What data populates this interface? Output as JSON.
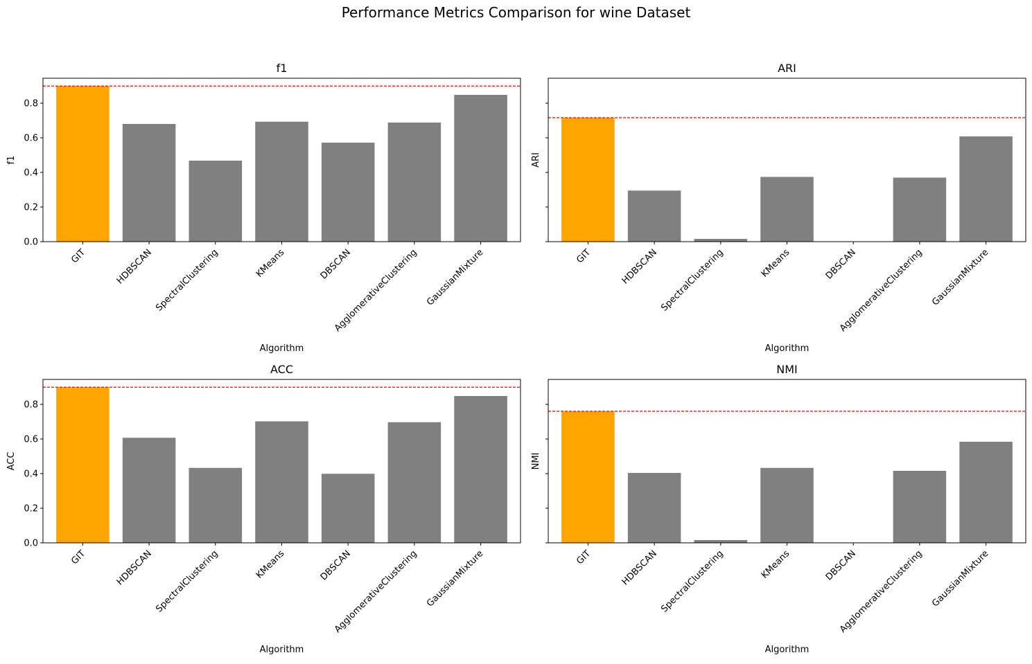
{
  "suptitle": "Performance Metrics Comparison for wine Dataset",
  "colors": {
    "highlight": "#ffa500",
    "bar": "#808080",
    "reference_line": "#ff0000"
  },
  "chart_data": [
    {
      "type": "bar",
      "title": "f1",
      "xlabel": "Algorithm",
      "ylabel": "f1",
      "categories": [
        "GIT",
        "HDBSCAN",
        "SpectralClustering",
        "KMeans",
        "DBSCAN",
        "AgglomerativeClustering",
        "GaussianMixture"
      ],
      "values": [
        0.899,
        0.68,
        0.468,
        0.693,
        0.572,
        0.688,
        0.848
      ],
      "highlight_index": 0,
      "reference_line": 0.899,
      "ylim": [
        0,
        0.944
      ],
      "yticks": [
        0.0,
        0.2,
        0.4,
        0.6,
        0.8
      ],
      "ytick_labels": [
        "0.0",
        "0.2",
        "0.4",
        "0.6",
        "0.8"
      ]
    },
    {
      "type": "bar",
      "title": "ARI",
      "xlabel": "Algorithm",
      "ylabel": "ARI",
      "categories": [
        "GIT",
        "HDBSCAN",
        "SpectralClustering",
        "KMeans",
        "DBSCAN",
        "AgglomerativeClustering",
        "GaussianMixture"
      ],
      "values": [
        0.716,
        0.295,
        0.016,
        0.374,
        0.0,
        0.37,
        0.608
      ],
      "highlight_index": 0,
      "reference_line": 0.716,
      "ylim": [
        0,
        0.944
      ],
      "yticks": [
        0.0,
        0.2,
        0.4,
        0.6,
        0.8
      ],
      "ytick_labels": [
        "",
        "",
        "",
        "",
        ""
      ]
    },
    {
      "type": "bar",
      "title": "ACC",
      "xlabel": "Algorithm",
      "ylabel": "ACC",
      "categories": [
        "GIT",
        "HDBSCAN",
        "SpectralClustering",
        "KMeans",
        "DBSCAN",
        "AgglomerativeClustering",
        "GaussianMixture"
      ],
      "values": [
        0.899,
        0.607,
        0.433,
        0.702,
        0.399,
        0.697,
        0.848
      ],
      "highlight_index": 0,
      "reference_line": 0.899,
      "ylim": [
        0,
        0.944
      ],
      "yticks": [
        0.0,
        0.2,
        0.4,
        0.6,
        0.8
      ],
      "ytick_labels": [
        "0.0",
        "0.2",
        "0.4",
        "0.6",
        "0.8"
      ]
    },
    {
      "type": "bar",
      "title": "NMI",
      "xlabel": "Algorithm",
      "ylabel": "NMI",
      "categories": [
        "GIT",
        "HDBSCAN",
        "SpectralClustering",
        "KMeans",
        "DBSCAN",
        "AgglomerativeClustering",
        "GaussianMixture"
      ],
      "values": [
        0.76,
        0.404,
        0.016,
        0.433,
        0.0,
        0.416,
        0.584
      ],
      "highlight_index": 0,
      "reference_line": 0.76,
      "ylim": [
        0,
        0.944
      ],
      "yticks": [
        0.0,
        0.2,
        0.4,
        0.6,
        0.8
      ],
      "ytick_labels": [
        "",
        "",
        "",
        "",
        ""
      ]
    }
  ]
}
